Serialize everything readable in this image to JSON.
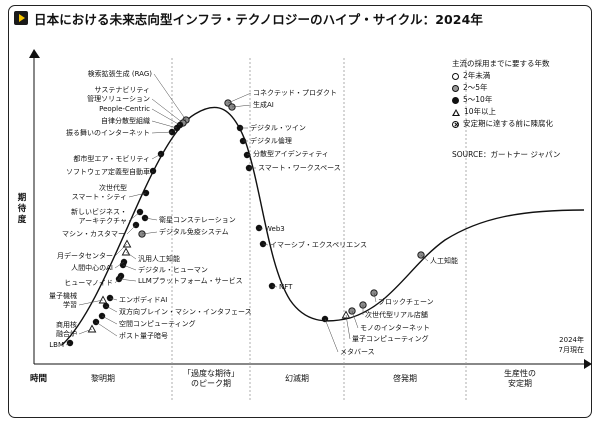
{
  "title": "日本における未来志向型インフラ・テクノロジーのハイプ・サイクル：2024年",
  "source": "SOURCE：ガートナー ジャパン",
  "date_note": [
    "2024年",
    "7月現在"
  ],
  "legend": {
    "heading": "主流の採用までに要する年数",
    "items": [
      {
        "marker": "c2",
        "label": "2年未満"
      },
      {
        "marker": "c25",
        "label": "2～5年"
      },
      {
        "marker": "c510",
        "label": "5～10年"
      },
      {
        "marker": "tri",
        "label": "10年以上"
      },
      {
        "marker": "x",
        "label": "安定期に達する前に陳腐化"
      }
    ]
  },
  "chart_data": {
    "type": "line",
    "x_axis_label": "時間",
    "y_axis_label": "期待度",
    "phases": [
      "黎明期",
      "「過度な期待」のピーク期",
      "幻滅期",
      "啓発期",
      "生産性の安定期"
    ],
    "technologies": [
      {
        "name": "検索拡張生成 (RAG)",
        "marker": "c25"
      },
      {
        "name": "サステナビリティ管理ソリューション",
        "marker": "c25"
      },
      {
        "name": "People-Centric",
        "marker": "c510"
      },
      {
        "name": "自律分散型組織",
        "marker": "c510"
      },
      {
        "name": "振る舞いのインターネット",
        "marker": "c510"
      },
      {
        "name": "都市型エア・モビリティ",
        "marker": "c510"
      },
      {
        "name": "ソフトウェア定義型自動車",
        "marker": "c510"
      },
      {
        "name": "次世代型スマート・シティ",
        "marker": "c510"
      },
      {
        "name": "新しいビジネス・アーキテクチャ",
        "marker": "c510"
      },
      {
        "name": "マシン・カスタマー",
        "marker": "c510"
      },
      {
        "name": "衛星コンステレーション",
        "marker": "c510"
      },
      {
        "name": "デジタル免疫システム",
        "marker": "c25"
      },
      {
        "name": "月データセンター",
        "marker": "tri"
      },
      {
        "name": "人間中心のAI",
        "marker": "c510"
      },
      {
        "name": "ヒューマノイド",
        "marker": "c510"
      },
      {
        "name": "汎用人工知能",
        "marker": "tri"
      },
      {
        "name": "デジタル・ヒューマン",
        "marker": "c510"
      },
      {
        "name": "LLMプラットフォーム・サービス",
        "marker": "c510"
      },
      {
        "name": "エンボディドAI",
        "marker": "c510"
      },
      {
        "name": "量子機械学習",
        "marker": "tri"
      },
      {
        "name": "双方向ブレイン・マシン・インタフェース",
        "marker": "c510"
      },
      {
        "name": "空間コンピューティング",
        "marker": "c510"
      },
      {
        "name": "商用核融合炉",
        "marker": "tri"
      },
      {
        "name": "ポスト量子暗号",
        "marker": "c510"
      },
      {
        "name": "LBM",
        "marker": "c510"
      },
      {
        "name": "コネクテッド・プロダクト",
        "marker": "c25"
      },
      {
        "name": "生成AI",
        "marker": "c25"
      },
      {
        "name": "デジタル・ツイン",
        "marker": "c510"
      },
      {
        "name": "デジタル倫理",
        "marker": "c510"
      },
      {
        "name": "分散型アイデンティティ",
        "marker": "c510"
      },
      {
        "name": "スマート・ワークスペース",
        "marker": "c510"
      },
      {
        "name": "Web3",
        "marker": "c510"
      },
      {
        "name": "イマーシブ・エクスペリエンス",
        "marker": "c510"
      },
      {
        "name": "NFT",
        "marker": "c510"
      },
      {
        "name": "メタバース",
        "marker": "c510"
      },
      {
        "name": "量子コンピューティング",
        "marker": "tri"
      },
      {
        "name": "モノのインターネット",
        "marker": "c25"
      },
      {
        "name": "次世代型リアル店舗",
        "marker": "c25"
      },
      {
        "name": "ブロックチェーン",
        "marker": "c25"
      },
      {
        "name": "人工知能",
        "marker": "c25"
      }
    ]
  }
}
